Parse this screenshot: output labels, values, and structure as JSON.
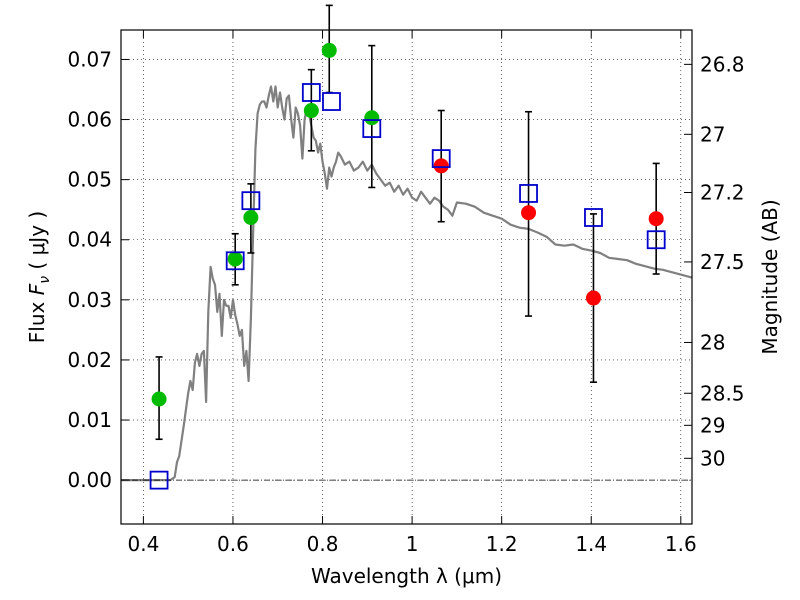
{
  "chart_data": {
    "type": "scatter",
    "xlabel": "Wavelength  λ (μm)",
    "ylabel": "Flux  F_ν  ( μJy )",
    "ylabel_right": "Magnitude (AB)",
    "xlim": [
      0.35,
      1.625
    ],
    "ylim": [
      -0.0073,
      0.0749
    ],
    "x_ticks": [
      0.4,
      0.6,
      0.8,
      1.0,
      1.2,
      1.4,
      1.6
    ],
    "x_tick_labels": [
      "0.4",
      "0.6",
      "0.8",
      "1",
      "1.2",
      "1.4",
      "1.6"
    ],
    "y_ticks": [
      0.0,
      0.01,
      0.02,
      0.03,
      0.04,
      0.05,
      0.06,
      0.07
    ],
    "y_tick_labels": [
      "0.00",
      "0.01",
      "0.02",
      "0.03",
      "0.04",
      "0.05",
      "0.06",
      "0.07"
    ],
    "right_ticks": [
      {
        "label": "26.8",
        "mag": 26.8
      },
      {
        "label": "27",
        "mag": 27.0
      },
      {
        "label": "27.2",
        "mag": 27.2
      },
      {
        "label": "27.5",
        "mag": 27.5
      },
      {
        "label": "28",
        "mag": 28.0
      },
      {
        "label": "28.5",
        "mag": 28.5
      },
      {
        "label": "29",
        "mag": 29.0
      },
      {
        "label": "30",
        "mag": 30.0
      }
    ],
    "grid": true,
    "series": [
      {
        "kind": "model_sed",
        "color": "#808080",
        "points": [
          [
            0.35,
            0.0
          ],
          [
            0.46,
            0.0
          ],
          [
            0.47,
            0.0005
          ],
          [
            0.475,
            0.003
          ],
          [
            0.48,
            0.004
          ],
          [
            0.49,
            0.009
          ],
          [
            0.5,
            0.0145
          ],
          [
            0.505,
            0.0165
          ],
          [
            0.51,
            0.015
          ],
          [
            0.515,
            0.0195
          ],
          [
            0.52,
            0.021
          ],
          [
            0.525,
            0.019
          ],
          [
            0.53,
            0.021
          ],
          [
            0.535,
            0.0215
          ],
          [
            0.54,
            0.013
          ],
          [
            0.545,
            0.028
          ],
          [
            0.55,
            0.0355
          ],
          [
            0.555,
            0.0335
          ],
          [
            0.56,
            0.0325
          ],
          [
            0.565,
            0.028
          ],
          [
            0.57,
            0.031
          ],
          [
            0.575,
            0.024
          ],
          [
            0.58,
            0.03
          ],
          [
            0.585,
            0.029
          ],
          [
            0.59,
            0.029
          ],
          [
            0.595,
            0.027
          ],
          [
            0.6,
            0.03
          ],
          [
            0.605,
            0.0275
          ],
          [
            0.61,
            0.026
          ],
          [
            0.615,
            0.024
          ],
          [
            0.62,
            0.025
          ],
          [
            0.625,
            0.019
          ],
          [
            0.63,
            0.0215
          ],
          [
            0.635,
            0.0165
          ],
          [
            0.64,
            0.027
          ],
          [
            0.645,
            0.041
          ],
          [
            0.65,
            0.055
          ],
          [
            0.655,
            0.061
          ],
          [
            0.66,
            0.0625
          ],
          [
            0.665,
            0.063
          ],
          [
            0.67,
            0.063
          ],
          [
            0.675,
            0.062
          ],
          [
            0.68,
            0.064
          ],
          [
            0.685,
            0.0655
          ],
          [
            0.69,
            0.063
          ],
          [
            0.695,
            0.0655
          ],
          [
            0.7,
            0.062
          ],
          [
            0.705,
            0.0645
          ],
          [
            0.71,
            0.062
          ],
          [
            0.715,
            0.06
          ],
          [
            0.72,
            0.0635
          ],
          [
            0.725,
            0.064
          ],
          [
            0.73,
            0.06
          ],
          [
            0.735,
            0.057
          ],
          [
            0.74,
            0.062
          ],
          [
            0.745,
            0.061
          ],
          [
            0.75,
            0.059
          ],
          [
            0.755,
            0.0535
          ],
          [
            0.76,
            0.06
          ],
          [
            0.765,
            0.062
          ],
          [
            0.77,
            0.061
          ],
          [
            0.775,
            0.059
          ],
          [
            0.78,
            0.057
          ],
          [
            0.785,
            0.0565
          ],
          [
            0.79,
            0.0545
          ],
          [
            0.795,
            0.056
          ],
          [
            0.8,
            0.053
          ],
          [
            0.805,
            0.051
          ],
          [
            0.81,
            0.0485
          ],
          [
            0.815,
            0.052
          ],
          [
            0.82,
            0.0505
          ],
          [
            0.825,
            0.052
          ],
          [
            0.83,
            0.053
          ],
          [
            0.835,
            0.0545
          ],
          [
            0.84,
            0.054
          ],
          [
            0.85,
            0.0525
          ],
          [
            0.86,
            0.053
          ],
          [
            0.87,
            0.0515
          ],
          [
            0.88,
            0.052
          ],
          [
            0.89,
            0.053
          ],
          [
            0.9,
            0.0515
          ],
          [
            0.91,
            0.0525
          ],
          [
            0.92,
            0.051
          ],
          [
            0.93,
            0.05
          ],
          [
            0.94,
            0.049
          ],
          [
            0.95,
            0.0495
          ],
          [
            0.96,
            0.048
          ],
          [
            0.97,
            0.049
          ],
          [
            0.98,
            0.0475
          ],
          [
            0.99,
            0.0485
          ],
          [
            1.0,
            0.047
          ],
          [
            1.01,
            0.0465
          ],
          [
            1.02,
            0.048
          ],
          [
            1.03,
            0.047
          ],
          [
            1.04,
            0.046
          ],
          [
            1.05,
            0.047
          ],
          [
            1.06,
            0.0465
          ],
          [
            1.07,
            0.0455
          ],
          [
            1.08,
            0.045
          ],
          [
            1.09,
            0.044
          ],
          [
            1.1,
            0.0462
          ],
          [
            1.12,
            0.046
          ],
          [
            1.14,
            0.0455
          ],
          [
            1.16,
            0.0445
          ],
          [
            1.18,
            0.044
          ],
          [
            1.2,
            0.0435
          ],
          [
            1.22,
            0.0425
          ],
          [
            1.24,
            0.042
          ],
          [
            1.26,
            0.0418
          ],
          [
            1.28,
            0.0412
          ],
          [
            1.3,
            0.0405
          ],
          [
            1.32,
            0.0392
          ],
          [
            1.34,
            0.039
          ],
          [
            1.36,
            0.0392
          ],
          [
            1.38,
            0.0385
          ],
          [
            1.4,
            0.0382
          ],
          [
            1.42,
            0.0378
          ],
          [
            1.44,
            0.037
          ],
          [
            1.46,
            0.0368
          ],
          [
            1.48,
            0.0366
          ],
          [
            1.5,
            0.036
          ],
          [
            1.52,
            0.0356
          ],
          [
            1.54,
            0.0352
          ],
          [
            1.56,
            0.035
          ],
          [
            1.58,
            0.0346
          ],
          [
            1.6,
            0.0342
          ],
          [
            1.625,
            0.0337
          ]
        ]
      },
      {
        "kind": "observed_detected",
        "color": "#00bb00",
        "points": [
          {
            "x": 0.435,
            "y": 0.0135,
            "err_lo": 0.0068,
            "err_hi": 0.0205
          },
          {
            "x": 0.605,
            "y": 0.0368,
            "err_lo": 0.0325,
            "err_hi": 0.041
          },
          {
            "x": 0.64,
            "y": 0.0437,
            "err_lo": 0.0378,
            "err_hi": 0.0493
          },
          {
            "x": 0.775,
            "y": 0.0615,
            "err_lo": 0.0548,
            "err_hi": 0.0683
          },
          {
            "x": 0.815,
            "y": 0.0715,
            "err_lo": 0.0645,
            "err_hi": 0.079
          },
          {
            "x": 0.91,
            "y": 0.0603,
            "err_lo": 0.0487,
            "err_hi": 0.0723
          }
        ]
      },
      {
        "kind": "observed_nir",
        "color": "#ff0000",
        "points": [
          {
            "x": 1.065,
            "y": 0.0523,
            "err_lo": 0.043,
            "err_hi": 0.0615
          },
          {
            "x": 1.26,
            "y": 0.0445,
            "err_lo": 0.0273,
            "err_hi": 0.0613
          },
          {
            "x": 1.405,
            "y": 0.0303,
            "err_lo": 0.0163,
            "err_hi": 0.0443
          },
          {
            "x": 1.545,
            "y": 0.0435,
            "err_lo": 0.0343,
            "err_hi": 0.0527
          }
        ]
      },
      {
        "kind": "model_synthetic",
        "color": "#0000cc",
        "points": [
          {
            "x": 0.435,
            "y": 0.0
          },
          {
            "x": 0.605,
            "y": 0.0365
          },
          {
            "x": 0.64,
            "y": 0.0465
          },
          {
            "x": 0.775,
            "y": 0.0645
          },
          {
            "x": 0.82,
            "y": 0.063
          },
          {
            "x": 0.91,
            "y": 0.0585
          },
          {
            "x": 1.065,
            "y": 0.0535
          },
          {
            "x": 1.26,
            "y": 0.0477
          },
          {
            "x": 1.405,
            "y": 0.0437
          },
          {
            "x": 1.545,
            "y": 0.04
          }
        ]
      }
    ]
  }
}
